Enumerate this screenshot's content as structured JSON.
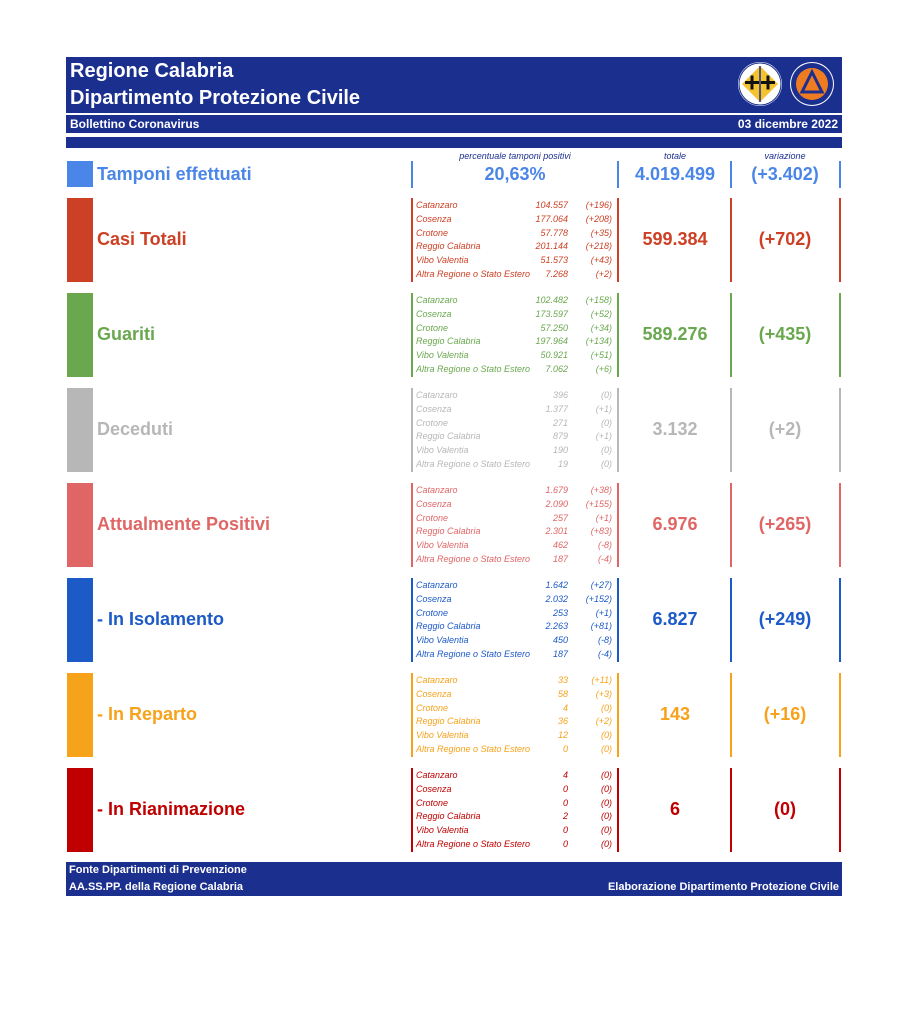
{
  "header": {
    "title1": "Regione Calabria",
    "title2": "Dipartimento Protezione Civile",
    "subtitle": "Bollettino Coronavirus",
    "date": "03 dicembre 2022"
  },
  "colheads": {
    "perc": "percentuale tamponi positivi",
    "totale": "totale",
    "variazione": "variazione"
  },
  "tamponi": {
    "label": "Tamponi effettuati",
    "perc": "20,63%",
    "totale": "4.019.499",
    "variazione": "(+3.402)",
    "color": "#4a86e8"
  },
  "sections": [
    {
      "label": "Casi Totali",
      "color": "#cc4125",
      "totale": "599.384",
      "variazione": "(+702)",
      "rows": [
        {
          "p": "Catanzaro",
          "v": "104.557",
          "d": "(+196)"
        },
        {
          "p": "Cosenza",
          "v": "177.064",
          "d": "(+208)"
        },
        {
          "p": "Crotone",
          "v": "57.778",
          "d": "(+35)"
        },
        {
          "p": "Reggio Calabria",
          "v": "201.144",
          "d": "(+218)"
        },
        {
          "p": "Vibo Valentia",
          "v": "51.573",
          "d": "(+43)"
        },
        {
          "p": "Altra Regione o Stato Estero",
          "v": "7.268",
          "d": "(+2)"
        }
      ]
    },
    {
      "label": "Guariti",
      "color": "#6aa84f",
      "totale": "589.276",
      "variazione": "(+435)",
      "rows": [
        {
          "p": "Catanzaro",
          "v": "102.482",
          "d": "(+158)"
        },
        {
          "p": "Cosenza",
          "v": "173.597",
          "d": "(+52)"
        },
        {
          "p": "Crotone",
          "v": "57.250",
          "d": "(+34)"
        },
        {
          "p": "Reggio Calabria",
          "v": "197.964",
          "d": "(+134)"
        },
        {
          "p": "Vibo Valentia",
          "v": "50.921",
          "d": "(+51)"
        },
        {
          "p": "Altra Regione o Stato Estero",
          "v": "7.062",
          "d": "(+6)"
        }
      ]
    },
    {
      "label": "Deceduti",
      "color": "#b7b7b7",
      "totale": "3.132",
      "variazione": "(+2)",
      "rows": [
        {
          "p": "Catanzaro",
          "v": "396",
          "d": "(0)"
        },
        {
          "p": "Cosenza",
          "v": "1.377",
          "d": "(+1)"
        },
        {
          "p": "Crotone",
          "v": "271",
          "d": "(0)"
        },
        {
          "p": "Reggio Calabria",
          "v": "879",
          "d": "(+1)"
        },
        {
          "p": "Vibo Valentia",
          "v": "190",
          "d": "(0)"
        },
        {
          "p": "Altra Regione o Stato Estero",
          "v": "19",
          "d": "(0)"
        }
      ]
    },
    {
      "label": "Attualmente Positivi",
      "color": "#e06666",
      "totale": "6.976",
      "variazione": "(+265)",
      "rows": [
        {
          "p": "Catanzaro",
          "v": "1.679",
          "d": "(+38)"
        },
        {
          "p": "Cosenza",
          "v": "2.090",
          "d": "(+155)"
        },
        {
          "p": "Crotone",
          "v": "257",
          "d": "(+1)"
        },
        {
          "p": "Reggio Calabria",
          "v": "2.301",
          "d": "(+83)"
        },
        {
          "p": "Vibo Valentia",
          "v": "462",
          "d": "(-8)"
        },
        {
          "p": "Altra Regione o Stato Estero",
          "v": "187",
          "d": "(-4)"
        }
      ]
    },
    {
      "label": " - In Isolamento",
      "color": "#1c5ac8",
      "totale": "6.827",
      "variazione": "(+249)",
      "rows": [
        {
          "p": "Catanzaro",
          "v": "1.642",
          "d": "(+27)"
        },
        {
          "p": "Cosenza",
          "v": "2.032",
          "d": "(+152)"
        },
        {
          "p": "Crotone",
          "v": "253",
          "d": "(+1)"
        },
        {
          "p": "Reggio Calabria",
          "v": "2.263",
          "d": "(+81)"
        },
        {
          "p": "Vibo Valentia",
          "v": "450",
          "d": "(-8)"
        },
        {
          "p": "Altra Regione o Stato Estero",
          "v": "187",
          "d": "(-4)"
        }
      ]
    },
    {
      "label": " - In Reparto",
      "color": "#f6a21b",
      "totale": "143",
      "variazione": "(+16)",
      "rows": [
        {
          "p": "Catanzaro",
          "v": "33",
          "d": "(+11)"
        },
        {
          "p": "Cosenza",
          "v": "58",
          "d": "(+3)"
        },
        {
          "p": "Crotone",
          "v": "4",
          "d": "(0)"
        },
        {
          "p": "Reggio Calabria",
          "v": "36",
          "d": "(+2)"
        },
        {
          "p": "Vibo Valentia",
          "v": "12",
          "d": "(0)"
        },
        {
          "p": "Altra Regione o Stato Estero",
          "v": "0",
          "d": "(0)"
        }
      ]
    },
    {
      "label": " - In Rianimazione",
      "color": "#c00000",
      "totale": "6",
      "variazione": "(0)",
      "rows": [
        {
          "p": "Catanzaro",
          "v": "4",
          "d": "(0)"
        },
        {
          "p": "Cosenza",
          "v": "0",
          "d": "(0)"
        },
        {
          "p": "Crotone",
          "v": "0",
          "d": "(0)"
        },
        {
          "p": "Reggio Calabria",
          "v": "2",
          "d": "(0)"
        },
        {
          "p": "Vibo Valentia",
          "v": "0",
          "d": "(0)"
        },
        {
          "p": "Altra Regione o Stato Estero",
          "v": "0",
          "d": "(0)"
        }
      ]
    }
  ],
  "footer": {
    "line1": "Fonte Dipartimenti di Prevenzione",
    "line2": "AA.SS.PP.  della Regione Calabria",
    "right": "Elaborazione Dipartimento Protezione Civile"
  },
  "icons": {
    "logo_regione": "calabria-coat-of-arms-icon",
    "logo_protezione": "protezione-civile-logo-icon"
  }
}
